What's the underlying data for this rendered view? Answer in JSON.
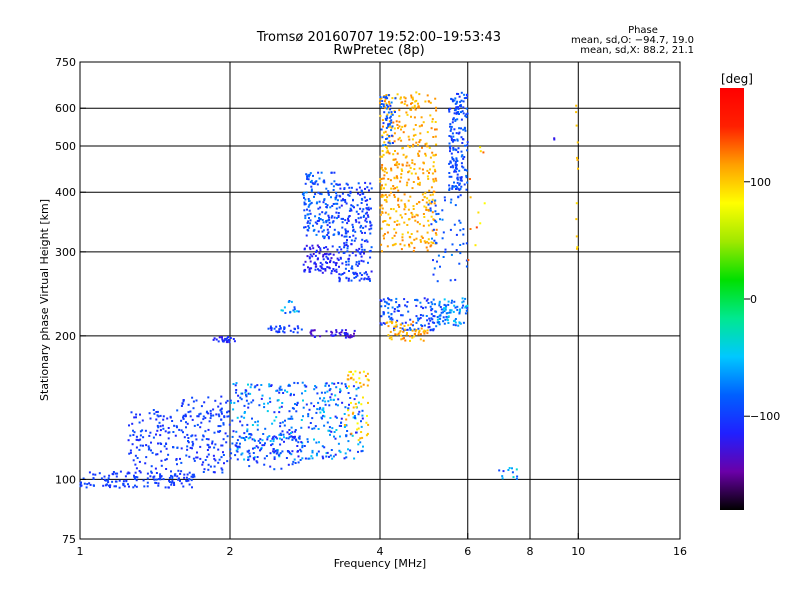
{
  "chart_data": {
    "type": "scatter",
    "title": "Tromsø 20160707 19:52:00–19:53:43",
    "subtitle": "RwPretec (8p)",
    "xlabel": "Frequency [MHz]",
    "ylabel": "Stationary phase Virtual Height [km]",
    "x_scale": "log",
    "y_scale": "log",
    "xlim": [
      1,
      16
    ],
    "ylim": [
      75,
      750
    ],
    "x_ticks": [
      1,
      2,
      4,
      6,
      8,
      10,
      16
    ],
    "x_tick_labels": [
      "1",
      "2",
      "4",
      "6",
      "8",
      "10",
      "16"
    ],
    "x_grid": [
      2,
      4,
      6,
      8,
      10
    ],
    "y_ticks": [
      75,
      100,
      200,
      300,
      400,
      500,
      600,
      750
    ],
    "y_tick_labels": [
      "75",
      "100",
      "200",
      "300",
      "400",
      "500",
      "600",
      "750"
    ],
    "y_grid": [
      100,
      200,
      300,
      400,
      500,
      600
    ],
    "grid": true,
    "phase_info": {
      "header": "Phase",
      "line_o": "mean, sd,O: −94.7, 19.0",
      "line_x": "mean, sd,X:  88.2, 21.1"
    },
    "colorbar": {
      "label": "[deg]",
      "range": [
        -180,
        180
      ],
      "ticks": [
        100,
        0,
        -100
      ],
      "tick_labels": [
        "100",
        "0",
        "−100"
      ],
      "colors": [
        "#000000",
        "#6a00a8",
        "#2020ff",
        "#0060ff",
        "#00c8ff",
        "#00e890",
        "#00e000",
        "#a0e800",
        "#ffff00",
        "#ffa000",
        "#ff2000",
        "#ff0000"
      ]
    },
    "clusters": [
      {
        "x": [
          1.0,
          1.7
        ],
        "y": [
          96,
          104
        ],
        "n": 140,
        "phase": [
          -110,
          -90
        ]
      },
      {
        "x": [
          1.25,
          2.0
        ],
        "y": [
          103,
          140
        ],
        "n": 240,
        "phase": [
          -115,
          -85
        ]
      },
      {
        "x": [
          1.6,
          2.0
        ],
        "y": [
          135,
          150
        ],
        "n": 40,
        "phase": [
          -110,
          -90
        ]
      },
      {
        "x": [
          2.0,
          3.7
        ],
        "y": [
          110,
          160
        ],
        "n": 380,
        "phase": [
          -120,
          -40
        ]
      },
      {
        "x": [
          2.0,
          2.8
        ],
        "y": [
          105,
          125
        ],
        "n": 80,
        "phase": [
          -115,
          -80
        ]
      },
      {
        "x": [
          3.4,
          3.8
        ],
        "y": [
          120,
          170
        ],
        "n": 50,
        "phase": [
          80,
          120
        ]
      },
      {
        "x": [
          1.85,
          2.05
        ],
        "y": [
          194,
          199
        ],
        "n": 25,
        "phase": [
          -125,
          -95
        ]
      },
      {
        "x": [
          2.35,
          2.8
        ],
        "y": [
          203,
          210
        ],
        "n": 30,
        "phase": [
          -115,
          -85
        ]
      },
      {
        "x": [
          2.9,
          3.6
        ],
        "y": [
          198,
          206
        ],
        "n": 40,
        "phase": [
          -140,
          -110
        ]
      },
      {
        "x": [
          2.5,
          2.75
        ],
        "y": [
          222,
          237
        ],
        "n": 15,
        "phase": [
          -100,
          -40
        ]
      },
      {
        "x": [
          2.8,
          3.3
        ],
        "y": [
          320,
          440
        ],
        "n": 160,
        "phase": [
          -110,
          -70
        ]
      },
      {
        "x": [
          2.8,
          3.3
        ],
        "y": [
          270,
          310
        ],
        "n": 90,
        "phase": [
          -130,
          -100
        ]
      },
      {
        "x": [
          3.3,
          3.85
        ],
        "y": [
          260,
          420
        ],
        "n": 230,
        "phase": [
          -120,
          -80
        ]
      },
      {
        "x": [
          4.0,
          5.2
        ],
        "y": [
          300,
          650
        ],
        "n": 420,
        "phase": [
          95,
          125
        ]
      },
      {
        "x": [
          4.0,
          5.2
        ],
        "y": [
          205,
          240
        ],
        "n": 120,
        "phase": [
          -115,
          -70
        ]
      },
      {
        "x": [
          4.1,
          5.0
        ],
        "y": [
          195,
          215
        ],
        "n": 60,
        "phase": [
          95,
          125
        ]
      },
      {
        "x": [
          5.2,
          6.0
        ],
        "y": [
          210,
          240
        ],
        "n": 80,
        "phase": [
          -100,
          -40
        ]
      },
      {
        "x": [
          5.5,
          6.0
        ],
        "y": [
          400,
          650
        ],
        "n": 180,
        "phase": [
          -110,
          -75
        ]
      },
      {
        "x": [
          5.0,
          6.0
        ],
        "y": [
          260,
          400
        ],
        "n": 60,
        "phase": [
          -105,
          -70
        ]
      },
      {
        "x": [
          4.0,
          4.3
        ],
        "y": [
          500,
          640
        ],
        "n": 50,
        "phase": [
          -110,
          -70
        ]
      },
      {
        "x": [
          6.0,
          6.5
        ],
        "y": [
          280,
          500
        ],
        "n": 12,
        "phase": [
          80,
          140
        ]
      },
      {
        "x": [
          6.8,
          7.9
        ],
        "y": [
          100,
          106
        ],
        "n": 12,
        "phase": [
          -110,
          -30
        ]
      },
      {
        "x": [
          9.9,
          10.0
        ],
        "y": [
          300,
          680
        ],
        "n": 12,
        "phase": [
          80,
          110
        ]
      },
      {
        "x": [
          8.9,
          9.0
        ],
        "y": [
          515,
          520
        ],
        "n": 2,
        "phase": [
          -130,
          -120
        ]
      }
    ]
  }
}
